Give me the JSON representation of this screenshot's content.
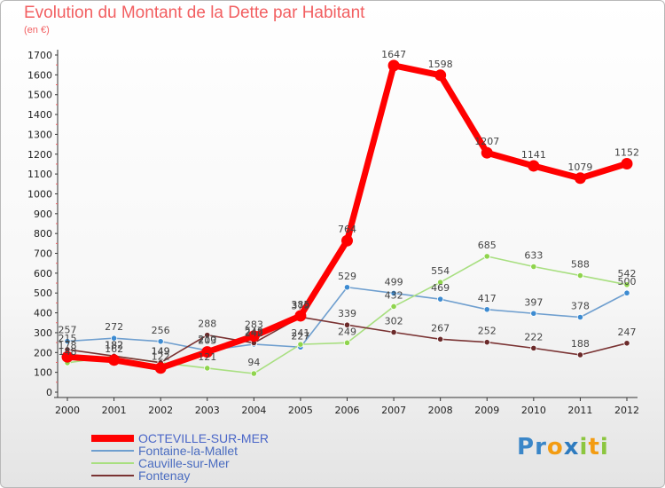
{
  "title": "Evolution du Montant de la Dette par Habitant",
  "subtitle": "(en €)",
  "brand": {
    "letters": [
      {
        "ch": "P",
        "color": "#3a86c8"
      },
      {
        "ch": "r",
        "color": "#3a86c8"
      },
      {
        "ch": "o",
        "color": "#f39c12"
      },
      {
        "ch": "x",
        "color": "#2e7bbf"
      },
      {
        "ch": "i",
        "color": "#8cc63f"
      },
      {
        "ch": "t",
        "color": "#f39c12"
      },
      {
        "ch": "i",
        "color": "#8cc63f"
      }
    ]
  },
  "chart_data": {
    "type": "line",
    "title": "Evolution du Montant de la Dette par Habitant",
    "ylabel": "(en €)",
    "xlabel": "",
    "x": [
      "2000",
      "2001",
      "2002",
      "2003",
      "2004",
      "2005",
      "2006",
      "2007",
      "2008",
      "2009",
      "2010",
      "2011",
      "2012"
    ],
    "ylim": [
      0,
      1700
    ],
    "yticks": [
      0,
      100,
      200,
      300,
      400,
      500,
      600,
      700,
      800,
      900,
      1000,
      1100,
      1200,
      1300,
      1400,
      1500,
      1600,
      1700
    ],
    "grid": false,
    "legend": "bottom-left",
    "series": [
      {
        "name": "OCTEVILLE-SUR-MER",
        "color": "#ff0000",
        "dot": "#ff0000",
        "values": [
          178,
          162,
          122,
          203,
          283,
          385,
          764,
          1647,
          1598,
          1207,
          1141,
          1079,
          1152
        ]
      },
      {
        "name": "Fontaine-la-Mallet",
        "color": "#6f9fcf",
        "dot": "#3d8bd1",
        "values": [
          257,
          272,
          256,
          210,
          242,
          227,
          529,
          499,
          469,
          417,
          397,
          378,
          500
        ]
      },
      {
        "name": "Cauville-sur-Mer",
        "color": "#a8df80",
        "dot": "#8fd44d",
        "values": [
          148,
          182,
          149,
          121,
          94,
          241,
          249,
          432,
          554,
          685,
          633,
          588,
          542
        ]
      },
      {
        "name": "Fontenay",
        "color": "#7a3333",
        "dot": "#6b2a2a",
        "values": [
          215,
          182,
          149,
          288,
          248,
          379,
          339,
          302,
          267,
          252,
          222,
          188,
          247
        ]
      }
    ]
  }
}
